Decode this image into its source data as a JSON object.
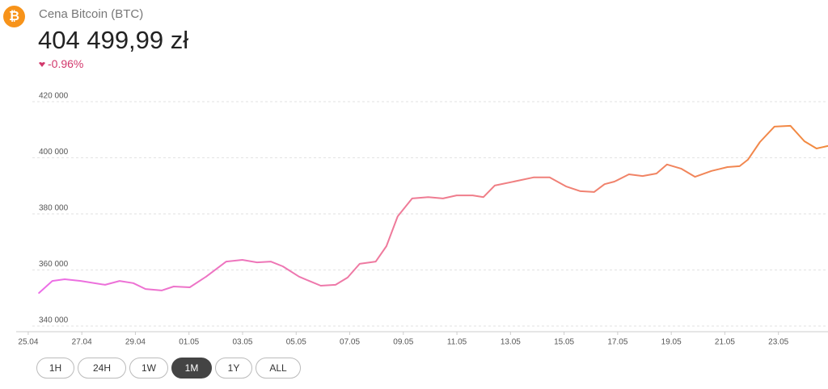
{
  "header": {
    "icon": "₿",
    "title": "Cena Bitcoin (BTC)",
    "price": "404 499,99 zł",
    "change": "-0.96%"
  },
  "chart_data": {
    "type": "line",
    "x": [
      0.4,
      0.9,
      1.36,
      1.96,
      2.87,
      3.41,
      3.92,
      4.38,
      4.98,
      5.43,
      6.03,
      6.64,
      7.39,
      7.99,
      8.54,
      9.05,
      9.5,
      10.11,
      10.56,
      10.92,
      11.47,
      11.92,
      12.37,
      12.97,
      13.37,
      13.79,
      14.33,
      14.93,
      15.48,
      15.99,
      16.59,
      16.99,
      17.41,
      18.26,
      18.86,
      19.46,
      20.07,
      20.61,
      21.12,
      21.51,
      21.88,
      22.42,
      22.93,
      23.45,
      23.84,
      24.38,
      24.89,
      25.5,
      26.1,
      26.55,
      26.86,
      27.31,
      27.85,
      28.45,
      28.97,
      29.42,
      29.84
    ],
    "series": [
      {
        "color": [
          "#ec6ee8",
          "#f28a3c"
        ],
        "values": [
          351800,
          356100,
          356700,
          356100,
          354700,
          356100,
          355300,
          353200,
          352700,
          354100,
          353800,
          357600,
          363000,
          363600,
          362700,
          363000,
          361300,
          357600,
          355800,
          354400,
          354700,
          357300,
          362200,
          363000,
          368500,
          379100,
          385500,
          386000,
          385500,
          386600,
          386600,
          386000,
          390100,
          391800,
          393000,
          393000,
          389800,
          388100,
          387800,
          390600,
          391500,
          394100,
          393500,
          394400,
          397600,
          396100,
          393200,
          395300,
          396700,
          397000,
          399300,
          405600,
          411100,
          411400,
          405900,
          403300,
          404200
        ]
      }
    ],
    "xlim": [
      -0.45,
      29.85
    ],
    "xticks": [
      {
        "value": 0,
        "label": "25.04"
      },
      {
        "value": 2,
        "label": "27.04"
      },
      {
        "value": 4,
        "label": "29.04"
      },
      {
        "value": 6,
        "label": "01.05"
      },
      {
        "value": 8,
        "label": "03.05"
      },
      {
        "value": 10,
        "label": "05.05"
      },
      {
        "value": 12,
        "label": "07.05"
      },
      {
        "value": 14,
        "label": "09.05"
      },
      {
        "value": 16,
        "label": "11.05"
      },
      {
        "value": 18,
        "label": "13.05"
      },
      {
        "value": 20,
        "label": "15.05"
      },
      {
        "value": 22,
        "label": "17.05"
      },
      {
        "value": 24,
        "label": "19.05"
      },
      {
        "value": 26,
        "label": "21.05"
      },
      {
        "value": 28,
        "label": "23.05"
      }
    ],
    "ylim": [
      340000,
      420000
    ],
    "yticks": [
      {
        "value": 340000,
        "label": "340 000"
      },
      {
        "value": 360000,
        "label": "360 000"
      },
      {
        "value": 380000,
        "label": "380 000"
      },
      {
        "value": 400000,
        "label": "400 000"
      },
      {
        "value": 420000,
        "label": "420 000"
      }
    ],
    "grid": true
  },
  "buttons": [
    "1H",
    "24H",
    "1W",
    "1M",
    "1Y",
    "ALL"
  ],
  "selected": 3
}
